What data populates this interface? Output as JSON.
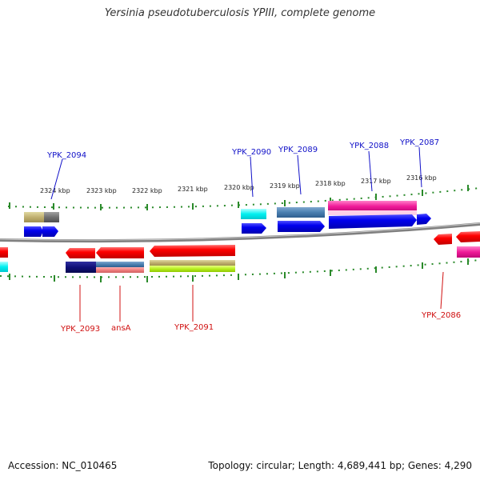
{
  "title": "Yersinia pseudotuberculosis YPIII, complete genome",
  "footer": {
    "accession": "Accession: NC_010465",
    "info": "Topology: circular; Length: 4,689,441 bp; Genes: 4,290"
  },
  "colors": {
    "forward_label": "#1010c8",
    "reverse_label": "#d01010",
    "backbone": "#808080",
    "tick": "#2a8a2a"
  },
  "ticks": [
    "2324 kbp",
    "2323 kbp",
    "2322 kbp",
    "2321 kbp",
    "2320 kbp",
    "2319 kbp",
    "2318 kbp",
    "2317 kbp",
    "2316 kbp"
  ],
  "forward_labels": [
    "YPK_2094",
    "YPK_2090",
    "YPK_2089",
    "YPK_2088",
    "YPK_2087"
  ],
  "reverse_labels": [
    "YPK_2093",
    "ansA",
    "YPK_2091",
    "YPK_2086"
  ]
}
